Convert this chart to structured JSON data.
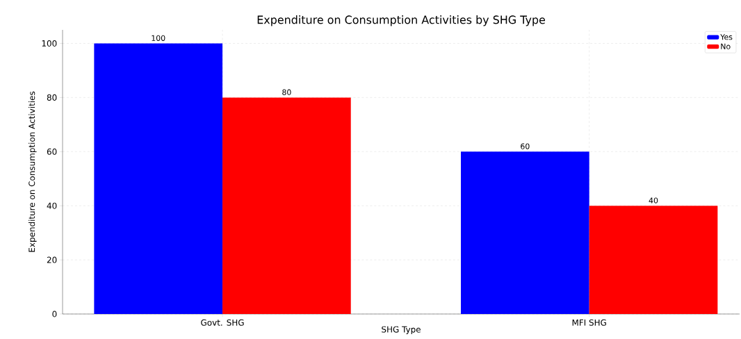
{
  "chart_data": {
    "type": "bar",
    "title": "Expenditure on Consumption Activities by SHG Type",
    "xlabel": "SHG Type",
    "ylabel": "Expenditure on Consumption Activities",
    "categories": [
      "Govt. SHG",
      "MFI SHG"
    ],
    "series": [
      {
        "name": "Yes",
        "color": "#0000ff",
        "values": [
          100,
          60
        ]
      },
      {
        "name": "No",
        "color": "#ff0000",
        "values": [
          80,
          40
        ]
      }
    ],
    "ylim": [
      0,
      105
    ],
    "yticks": [
      0,
      20,
      40,
      60,
      80,
      100
    ],
    "grid": true,
    "legend": "top right",
    "data_labels": true
  }
}
